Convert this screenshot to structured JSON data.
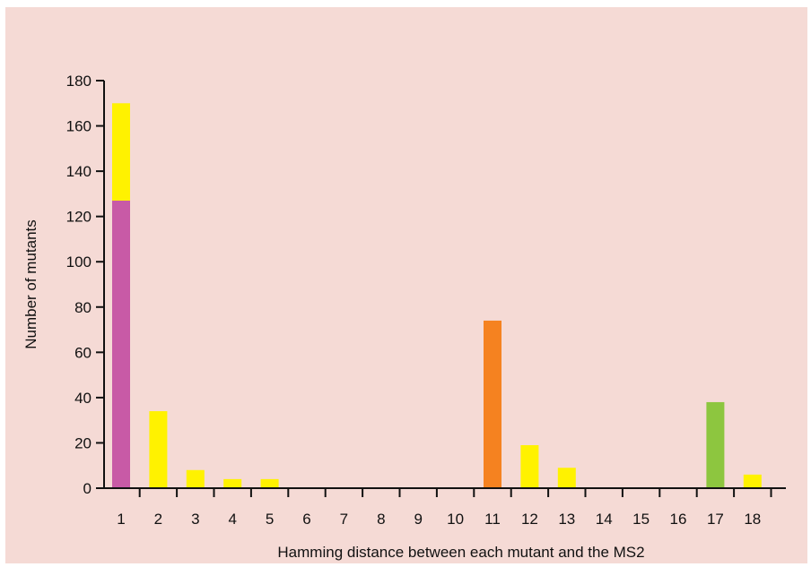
{
  "chart_data": {
    "type": "bar",
    "stacked": true,
    "title": "",
    "xlabel": "Hamming distance between each mutant and the MS2",
    "ylabel": "Number of mutants",
    "categories": [
      "1",
      "2",
      "3",
      "4",
      "5",
      "6",
      "7",
      "8",
      "9",
      "10",
      "11",
      "12",
      "13",
      "14",
      "15",
      "16",
      "17",
      "18"
    ],
    "ylim": [
      0,
      180
    ],
    "yticks": [
      0,
      20,
      40,
      60,
      80,
      100,
      120,
      140,
      160,
      180
    ],
    "grid": false,
    "legend": "none",
    "series": [
      {
        "color": "#c85aa6",
        "values": [
          127,
          0,
          0,
          0,
          0,
          0,
          0,
          0,
          0,
          0,
          0,
          0,
          0,
          0,
          0,
          0,
          0,
          0
        ]
      },
      {
        "color": "#fff200",
        "values": [
          43,
          34,
          8,
          4,
          4,
          0,
          0,
          0,
          0,
          0,
          0,
          19,
          9,
          0,
          0,
          0,
          0,
          6
        ]
      },
      {
        "color": "#f58220",
        "values": [
          0,
          0,
          0,
          0,
          0,
          0,
          0,
          0,
          0,
          0,
          74,
          0,
          0,
          0,
          0,
          0,
          0,
          0
        ]
      },
      {
        "color": "#8dc63f",
        "values": [
          0,
          0,
          0,
          0,
          0,
          0,
          0,
          0,
          0,
          0,
          0,
          0,
          0,
          0,
          0,
          0,
          38,
          0
        ]
      }
    ]
  }
}
